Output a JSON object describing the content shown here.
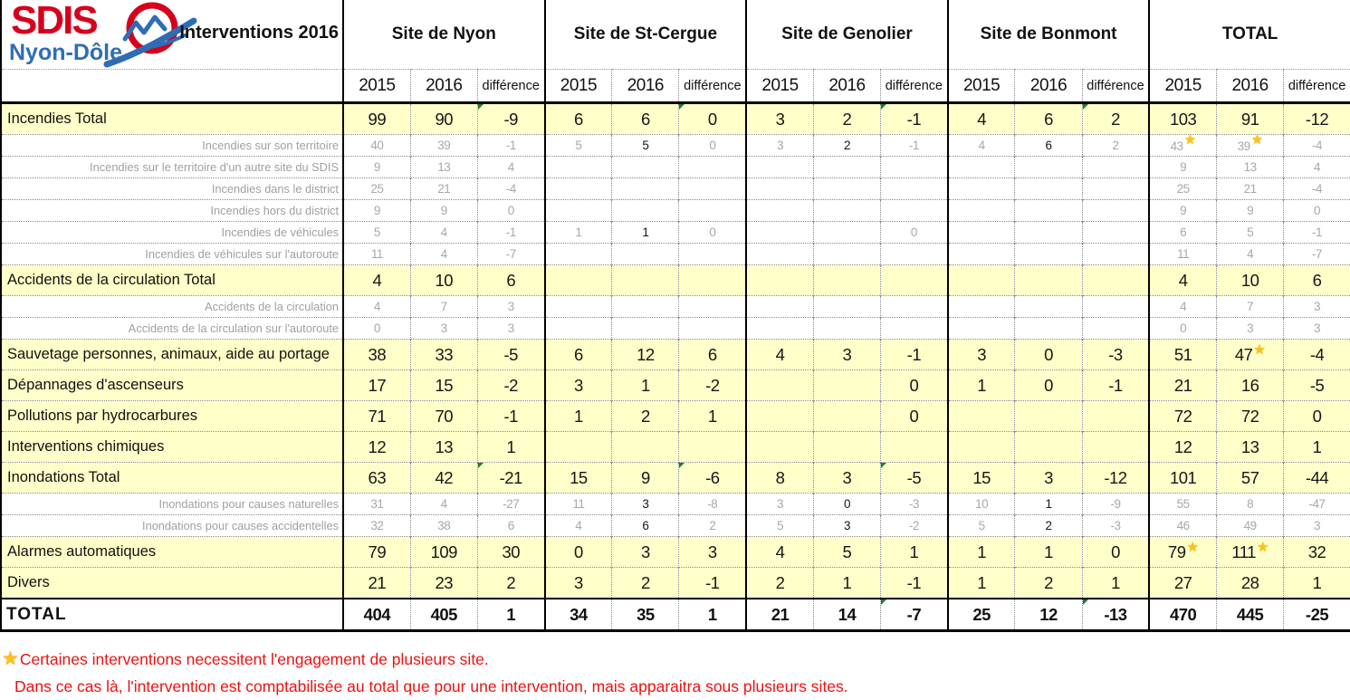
{
  "logo": {
    "sdis": "SDIS",
    "nyon_dole": "Nyon-Dôle"
  },
  "header": {
    "title": "Interventions 2016",
    "groups": [
      {
        "label": "Site de Nyon"
      },
      {
        "label": "Site de St-Cergue"
      },
      {
        "label": "Site de Genolier"
      },
      {
        "label": "Site de Bonmont"
      },
      {
        "label": "TOTAL"
      }
    ],
    "subcolumns": [
      "2015",
      "2016",
      "différence"
    ]
  },
  "rows": [
    {
      "label": "Incendies Total",
      "type": "main",
      "cells": [
        "99",
        "90",
        "-9",
        "6",
        "6",
        "0",
        "3",
        "2",
        "-1",
        "4",
        "6",
        "2",
        "103",
        "91",
        "-12"
      ],
      "markers": [
        2,
        5,
        8,
        11
      ]
    },
    {
      "label": "Incendies sur son territoire",
      "type": "sub",
      "cells": [
        "40",
        "39",
        "-1",
        "5",
        "5",
        "0",
        "3",
        "2",
        "-1",
        "4",
        "6",
        "2",
        "43",
        "39",
        "-4"
      ],
      "stars": [
        12,
        13
      ]
    },
    {
      "label": "Incendies sur le territoire d'un autre site du SDIS",
      "type": "sub",
      "cells": [
        "9",
        "13",
        "4",
        "",
        "",
        "",
        "",
        "",
        "",
        "",
        "",
        "",
        "9",
        "13",
        "4"
      ]
    },
    {
      "label": "Incendies dans le district",
      "type": "sub",
      "cells": [
        "25",
        "21",
        "-4",
        "",
        "",
        "",
        "",
        "",
        "",
        "",
        "",
        "",
        "25",
        "21",
        "-4"
      ]
    },
    {
      "label": "Incendies hors du district",
      "type": "sub",
      "cells": [
        "9",
        "9",
        "0",
        "",
        "",
        "",
        "",
        "",
        "",
        "",
        "",
        "",
        "9",
        "9",
        "0"
      ]
    },
    {
      "label": "Incendies de véhicules",
      "type": "sub",
      "cells": [
        "5",
        "4",
        "-1",
        "1",
        "1",
        "0",
        "",
        "",
        "0",
        "",
        "",
        "",
        "6",
        "5",
        "-1"
      ]
    },
    {
      "label": "Incendies de véhicules sur l'autoroute",
      "type": "sub",
      "cells": [
        "11",
        "4",
        "-7",
        "",
        "",
        "",
        "",
        "",
        "",
        "",
        "",
        "",
        "11",
        "4",
        "-7"
      ]
    },
    {
      "label": "Accidents de la circulation Total",
      "type": "main",
      "cells": [
        "4",
        "10",
        "6",
        "",
        "",
        "",
        "",
        "",
        "",
        "",
        "",
        "",
        "4",
        "10",
        "6"
      ]
    },
    {
      "label": "Accidents de la circulation",
      "type": "sub",
      "cells": [
        "4",
        "7",
        "3",
        "",
        "",
        "",
        "",
        "",
        "",
        "",
        "",
        "",
        "4",
        "7",
        "3"
      ]
    },
    {
      "label": "Accidents de la circulation sur l'autoroute",
      "type": "sub",
      "cells": [
        "0",
        "3",
        "3",
        "",
        "",
        "",
        "",
        "",
        "",
        "",
        "",
        "",
        "0",
        "3",
        "3"
      ]
    },
    {
      "label": "Sauvetage personnes, animaux, aide au portage",
      "type": "main",
      "cells": [
        "38",
        "33",
        "-5",
        "6",
        "12",
        "6",
        "4",
        "3",
        "-1",
        "3",
        "0",
        "-3",
        "51",
        "47",
        "-4"
      ],
      "stars": [
        13
      ]
    },
    {
      "label": "Dépannages d'ascenseurs",
      "type": "main",
      "cells": [
        "17",
        "15",
        "-2",
        "3",
        "1",
        "-2",
        "",
        "",
        "0",
        "1",
        "0",
        "-1",
        "21",
        "16",
        "-5"
      ]
    },
    {
      "label": "Pollutions par hydrocarbures",
      "type": "main",
      "cells": [
        "71",
        "70",
        "-1",
        "1",
        "2",
        "1",
        "",
        "",
        "0",
        "",
        "",
        "",
        "72",
        "72",
        "0"
      ]
    },
    {
      "label": "Interventions chimiques",
      "type": "main",
      "cells": [
        "12",
        "13",
        "1",
        "",
        "",
        "",
        "",
        "",
        "",
        "",
        "",
        "",
        "12",
        "13",
        "1"
      ]
    },
    {
      "label": "Inondations Total",
      "type": "main",
      "cells": [
        "63",
        "42",
        "-21",
        "15",
        "9",
        "-6",
        "8",
        "3",
        "-5",
        "15",
        "3",
        "-12",
        "101",
        "57",
        "-44"
      ],
      "markers": [
        2,
        5,
        8
      ]
    },
    {
      "label": "Inondations pour causes naturelles",
      "type": "sub",
      "cells": [
        "31",
        "4",
        "-27",
        "11",
        "3",
        "-8",
        "3",
        "0",
        "-3",
        "10",
        "1",
        "-9",
        "55",
        "8",
        "-47"
      ]
    },
    {
      "label": "Inondations pour causes accidentelles",
      "type": "sub",
      "cells": [
        "32",
        "38",
        "6",
        "4",
        "6",
        "2",
        "5",
        "3",
        "-2",
        "5",
        "2",
        "-3",
        "46",
        "49",
        "3"
      ]
    },
    {
      "label": "Alarmes automatiques",
      "type": "main",
      "cells": [
        "79",
        "109",
        "30",
        "0",
        "3",
        "3",
        "4",
        "5",
        "1",
        "1",
        "1",
        "0",
        "79",
        "111",
        "32"
      ],
      "stars": [
        12,
        13
      ]
    },
    {
      "label": "Divers",
      "type": "main",
      "cells": [
        "21",
        "23",
        "2",
        "3",
        "2",
        "-1",
        "2",
        "1",
        "-1",
        "1",
        "2",
        "1",
        "27",
        "28",
        "1"
      ]
    },
    {
      "label": "TOTAL",
      "type": "total",
      "cells": [
        "404",
        "405",
        "1",
        "34",
        "35",
        "1",
        "21",
        "14",
        "-7",
        "25",
        "12",
        "-13",
        "470",
        "445",
        "-25"
      ],
      "markers": [
        8,
        11
      ]
    }
  ],
  "notes": [
    {
      "star": true,
      "text": "Certaines interventions necessitent l'engagement de plusieurs site."
    },
    {
      "star": false,
      "text": "Dans ce cas là, l'intervention est comptabilisée au total que pour une intervention, mais apparaitra sous plusieurs sites."
    }
  ],
  "icons": {
    "star_glyph": "★",
    "star_meaning": "intervention counted on several sites",
    "triangle_meaning": "cell-comment-indicator"
  },
  "colors": {
    "row_highlight": "#ffffc9",
    "sub_text": "#a0a0a0",
    "logo_red": "#d6001c",
    "logo_blue": "#2e6db4",
    "note_red": "#ee1111",
    "star_gold": "#ffc20e",
    "marker_green": "#1e7b34"
  }
}
